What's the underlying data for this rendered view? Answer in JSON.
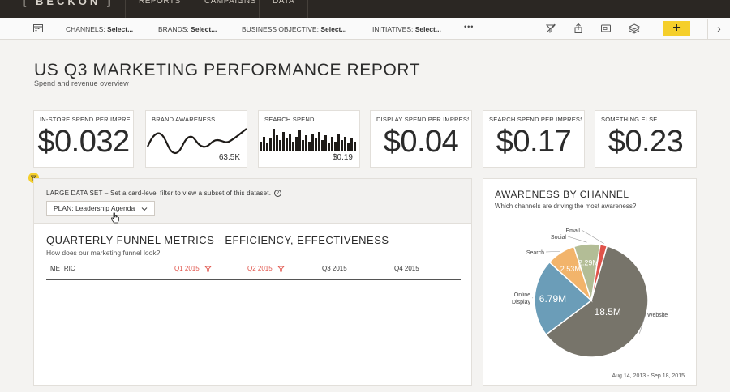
{
  "app": {
    "logo": "[ BECKON ]",
    "nav": [
      "REPORTS",
      "CAMPAIGNS",
      "DATA"
    ]
  },
  "filters": {
    "items": [
      {
        "label": "CHANNELS:",
        "value": "Select..."
      },
      {
        "label": "BRANDS:",
        "value": "Select..."
      },
      {
        "label": "BUSINESS OBJECTIVE:",
        "value": "Select..."
      },
      {
        "label": "INITIATIVES:",
        "value": "Select..."
      }
    ],
    "more": "•••",
    "add": "+",
    "next": "›"
  },
  "page": {
    "title": "US Q3 MARKETING PERFORMANCE REPORT",
    "subtitle": "Spend and revenue overview"
  },
  "kpis": [
    {
      "label": "IN-STORE SPEND PER IMPRES...",
      "value": "$0.032"
    },
    {
      "label": "BRAND AWARENESS",
      "value": "63.5K"
    },
    {
      "label": "SEARCH SPEND",
      "value": "$0.19"
    },
    {
      "label": "DISPLAY SPEND PER IMPRESS...",
      "value": "$0.04"
    },
    {
      "label": "SEARCH SPEND PER IMPRESSI...",
      "value": "$0.17"
    },
    {
      "label": "SOMETHING ELSE",
      "value": "$0.23"
    }
  ],
  "dataset": {
    "notice": "LARGE DATA SET – Set a card-level filter to view a subset of this dataset.",
    "help": "?",
    "plan_label": "PLAN:",
    "plan_value": "Leadership Agenda"
  },
  "funnel": {
    "title": "QUARTERLY FUNNEL METRICS - EFFICIENCY, EFFECTIVENESS",
    "subtitle": "How does our marketing funnel look?",
    "columns": [
      "METRIC",
      "Q1 2015",
      "Q2 2015",
      "Q3 2015",
      "Q4 2015"
    ]
  },
  "awareness": {
    "title": "AWARENESS BY CHANNEL",
    "subtitle": "Which channels are driving the most awareness?",
    "date_range": "Aug 14, 2013 - Sep 18, 2015"
  },
  "chart_data": {
    "type": "pie",
    "slices": [
      {
        "label": "Website",
        "value": 18.5,
        "display": "18.5M",
        "color": "#77746a"
      },
      {
        "label": "Online Display",
        "value": 6.79,
        "display": "6.79M",
        "color": "#6b9db8"
      },
      {
        "label": "Search",
        "value": 2.53,
        "display": "2.53M",
        "color": "#f2b46b"
      },
      {
        "label": "Social",
        "value": 2.29,
        "display": "2.29M",
        "color": "#b3bd96"
      },
      {
        "label": "Email",
        "value": 0.6,
        "display": "",
        "color": "#e0534a"
      }
    ]
  }
}
